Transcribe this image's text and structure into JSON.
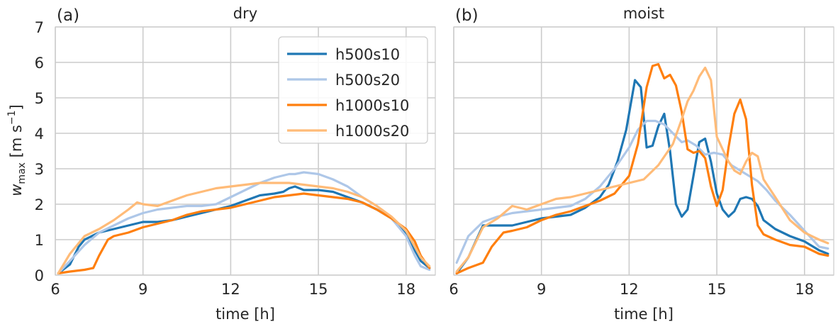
{
  "chart_data": [
    {
      "type": "line",
      "panel_label": "(a)",
      "title": "dry",
      "xlabel": "time [h]",
      "ylabel": "w_max [m s^-1]",
      "xlim": [
        6,
        19
      ],
      "ylim": [
        0,
        7
      ],
      "xticks": [
        6,
        9,
        12,
        15,
        18
      ],
      "yticks": [
        0,
        1,
        2,
        3,
        4,
        5,
        6,
        7
      ],
      "grid": true,
      "legend_position": "top-right",
      "series": [
        {
          "name": "h500s10",
          "color": "#1f77b4",
          "x": [
            6.1,
            6.5,
            6.8,
            7.0,
            7.5,
            8.0,
            8.5,
            9.0,
            9.5,
            10.0,
            10.5,
            11.0,
            11.5,
            12.0,
            12.5,
            13.0,
            13.5,
            13.8,
            14.0,
            14.2,
            14.5,
            15.0,
            15.5,
            16.0,
            16.5,
            17.0,
            17.5,
            18.0,
            18.3,
            18.5,
            18.8
          ],
          "y": [
            0.05,
            0.3,
            0.8,
            1.0,
            1.2,
            1.3,
            1.4,
            1.5,
            1.5,
            1.55,
            1.65,
            1.75,
            1.85,
            1.95,
            2.1,
            2.25,
            2.3,
            2.35,
            2.45,
            2.5,
            2.4,
            2.4,
            2.35,
            2.2,
            2.05,
            1.85,
            1.6,
            1.15,
            0.7,
            0.4,
            0.2
          ]
        },
        {
          "name": "h500s20",
          "color": "#aec7e8",
          "x": [
            6.1,
            6.5,
            7.0,
            7.5,
            8.0,
            8.5,
            9.0,
            9.5,
            10.0,
            10.5,
            11.0,
            11.5,
            12.0,
            12.5,
            13.0,
            13.5,
            14.0,
            14.2,
            14.5,
            15.0,
            15.5,
            16.0,
            16.5,
            17.0,
            17.5,
            18.0,
            18.3,
            18.5,
            18.8
          ],
          "y": [
            0.05,
            0.4,
            0.85,
            1.2,
            1.4,
            1.6,
            1.75,
            1.85,
            1.9,
            1.95,
            1.95,
            2.0,
            2.2,
            2.4,
            2.6,
            2.75,
            2.85,
            2.85,
            2.9,
            2.85,
            2.7,
            2.5,
            2.2,
            1.95,
            1.6,
            1.1,
            0.55,
            0.25,
            0.15
          ]
        },
        {
          "name": "h1000s10",
          "color": "#ff7f0e",
          "x": [
            6.1,
            6.5,
            7.0,
            7.3,
            7.5,
            7.8,
            8.0,
            8.5,
            9.0,
            9.5,
            10.0,
            10.5,
            11.0,
            11.5,
            12.0,
            12.5,
            13.0,
            13.5,
            14.0,
            14.5,
            15.0,
            15.5,
            16.0,
            16.5,
            17.0,
            17.5,
            18.0,
            18.3,
            18.5,
            18.8
          ],
          "y": [
            0.05,
            0.1,
            0.15,
            0.2,
            0.55,
            1.0,
            1.1,
            1.2,
            1.35,
            1.45,
            1.55,
            1.7,
            1.8,
            1.85,
            1.9,
            2.0,
            2.1,
            2.2,
            2.25,
            2.3,
            2.25,
            2.2,
            2.15,
            2.05,
            1.85,
            1.6,
            1.3,
            0.95,
            0.55,
            0.2
          ]
        },
        {
          "name": "h1000s20",
          "color": "#ffbb78",
          "x": [
            6.1,
            6.5,
            7.0,
            7.5,
            8.0,
            8.5,
            8.8,
            9.0,
            9.5,
            10.0,
            10.5,
            11.0,
            11.5,
            12.0,
            12.5,
            13.0,
            13.5,
            14.0,
            14.5,
            15.0,
            15.5,
            16.0,
            16.5,
            17.0,
            17.5,
            18.0,
            18.3,
            18.5,
            18.8
          ],
          "y": [
            0.05,
            0.6,
            1.1,
            1.3,
            1.55,
            1.85,
            2.05,
            2.0,
            1.95,
            2.1,
            2.25,
            2.35,
            2.45,
            2.5,
            2.55,
            2.6,
            2.6,
            2.6,
            2.55,
            2.5,
            2.45,
            2.35,
            2.2,
            1.95,
            1.65,
            1.25,
            0.8,
            0.5,
            0.25
          ]
        }
      ]
    },
    {
      "type": "line",
      "panel_label": "(b)",
      "title": "moist",
      "xlabel": "time [h]",
      "ylabel": "",
      "xlim": [
        6,
        19
      ],
      "ylim": [
        0,
        7
      ],
      "xticks": [
        6,
        9,
        12,
        15,
        18
      ],
      "yticks": [
        0,
        1,
        2,
        3,
        4,
        5,
        6,
        7
      ],
      "grid": true,
      "series": [
        {
          "name": "h500s10",
          "color": "#1f77b4",
          "x": [
            6.1,
            6.5,
            7.0,
            7.5,
            8.0,
            8.5,
            9.0,
            9.5,
            10.0,
            10.5,
            11.0,
            11.3,
            11.6,
            11.9,
            12.2,
            12.4,
            12.6,
            12.8,
            13.0,
            13.2,
            13.4,
            13.6,
            13.8,
            14.0,
            14.2,
            14.4,
            14.6,
            14.8,
            15.0,
            15.2,
            15.4,
            15.6,
            15.8,
            16.0,
            16.2,
            16.4,
            16.6,
            17.0,
            17.5,
            18.0,
            18.5,
            18.8
          ],
          "y": [
            0.05,
            0.5,
            1.4,
            1.4,
            1.4,
            1.5,
            1.6,
            1.65,
            1.7,
            1.9,
            2.2,
            2.55,
            3.2,
            4.1,
            5.5,
            5.3,
            3.6,
            3.65,
            4.2,
            4.55,
            3.5,
            2.0,
            1.65,
            1.85,
            2.8,
            3.75,
            3.85,
            3.2,
            2.3,
            1.85,
            1.65,
            1.8,
            2.15,
            2.2,
            2.15,
            1.95,
            1.55,
            1.3,
            1.1,
            0.95,
            0.7,
            0.6
          ]
        },
        {
          "name": "h500s20",
          "color": "#aec7e8",
          "x": [
            6.1,
            6.5,
            7.0,
            7.5,
            8.0,
            8.5,
            9.0,
            9.5,
            10.0,
            10.5,
            11.0,
            11.5,
            12.0,
            12.3,
            12.6,
            12.9,
            13.2,
            13.5,
            13.8,
            14.0,
            14.3,
            14.6,
            14.9,
            15.2,
            15.5,
            15.8,
            16.1,
            16.4,
            16.7,
            17.0,
            17.5,
            18.0,
            18.5,
            18.8
          ],
          "y": [
            0.35,
            1.1,
            1.5,
            1.65,
            1.75,
            1.8,
            1.85,
            1.9,
            1.95,
            2.15,
            2.5,
            3.0,
            3.6,
            4.1,
            4.35,
            4.35,
            4.25,
            4.0,
            3.75,
            3.8,
            3.65,
            3.4,
            3.45,
            3.4,
            3.1,
            2.95,
            2.8,
            2.65,
            2.4,
            2.1,
            1.7,
            1.25,
            0.8,
            0.75
          ]
        },
        {
          "name": "h1000s10",
          "color": "#ff7f0e",
          "x": [
            6.1,
            6.5,
            7.0,
            7.3,
            7.7,
            8.0,
            8.5,
            9.0,
            9.5,
            10.0,
            10.5,
            11.0,
            11.5,
            12.0,
            12.3,
            12.6,
            12.8,
            13.0,
            13.2,
            13.4,
            13.6,
            13.8,
            14.0,
            14.2,
            14.4,
            14.6,
            14.8,
            15.0,
            15.2,
            15.4,
            15.6,
            15.8,
            16.0,
            16.2,
            16.4,
            16.6,
            17.0,
            17.5,
            18.0,
            18.5,
            18.8
          ],
          "y": [
            0.05,
            0.2,
            0.35,
            0.8,
            1.2,
            1.25,
            1.35,
            1.55,
            1.7,
            1.8,
            1.95,
            2.1,
            2.3,
            2.8,
            3.7,
            5.3,
            5.9,
            5.95,
            5.55,
            5.65,
            5.35,
            4.6,
            3.55,
            3.45,
            3.5,
            3.3,
            2.5,
            1.95,
            2.4,
            3.6,
            4.55,
            4.95,
            4.4,
            2.55,
            1.4,
            1.15,
            1.0,
            0.85,
            0.8,
            0.6,
            0.55
          ]
        },
        {
          "name": "h1000s20",
          "color": "#ffbb78",
          "x": [
            6.1,
            6.5,
            7.0,
            7.5,
            8.0,
            8.5,
            9.0,
            9.5,
            10.0,
            10.5,
            11.0,
            11.5,
            12.0,
            12.5,
            13.0,
            13.5,
            13.8,
            14.0,
            14.2,
            14.4,
            14.6,
            14.8,
            15.0,
            15.2,
            15.4,
            15.6,
            15.8,
            16.0,
            16.2,
            16.4,
            16.6,
            17.0,
            17.5,
            18.0,
            18.5,
            18.8
          ],
          "y": [
            0.1,
            0.5,
            1.35,
            1.6,
            1.95,
            1.85,
            2.0,
            2.15,
            2.2,
            2.3,
            2.4,
            2.5,
            2.6,
            2.7,
            3.1,
            3.7,
            4.4,
            4.9,
            5.2,
            5.6,
            5.85,
            5.5,
            3.9,
            3.55,
            3.2,
            2.95,
            2.85,
            3.2,
            3.45,
            3.35,
            2.7,
            2.2,
            1.55,
            1.2,
            1.0,
            0.9
          ]
        }
      ]
    }
  ]
}
